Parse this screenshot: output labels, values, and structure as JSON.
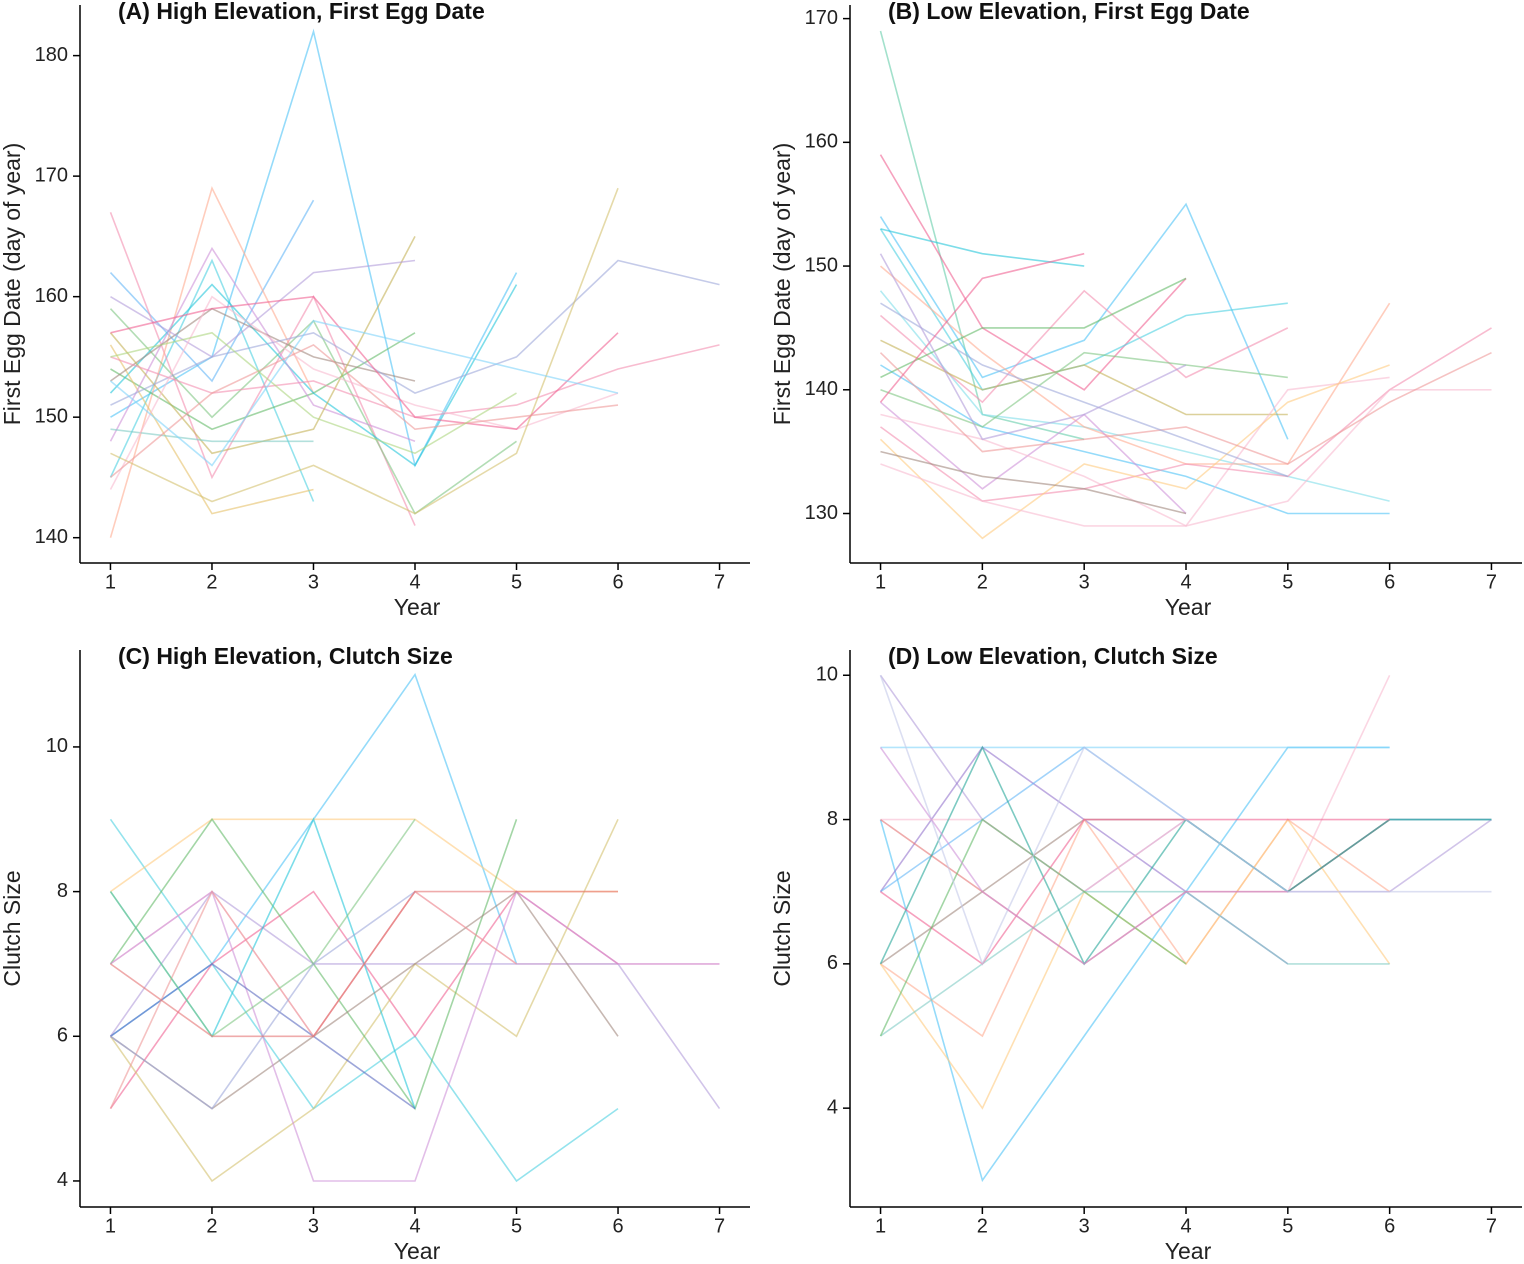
{
  "chart_data": [
    {
      "type": "line",
      "title": "(A) High Elevation, First Egg Date",
      "xlabel": "Year",
      "ylabel": "First Egg Date (day of year)",
      "x": [
        1,
        2,
        3,
        4,
        5,
        6,
        7
      ],
      "xlim": [
        0.7,
        7.3
      ],
      "xticks": [
        1,
        2,
        3,
        4,
        5,
        6,
        7
      ],
      "ylim": [
        137.9,
        184.2
      ],
      "yticks": [
        140,
        150,
        160,
        170,
        180
      ],
      "series": [
        {
          "color": "#4fc3f7",
          "values": [
            150,
            155,
            182,
            146,
            162,
            null,
            null
          ]
        },
        {
          "color": "#64b5f6",
          "values": [
            162,
            153,
            168,
            null,
            null,
            null,
            null
          ]
        },
        {
          "color": "#4dd0e1",
          "values": [
            145,
            163,
            143,
            null,
            null,
            null,
            null
          ]
        },
        {
          "color": "#f48fb1",
          "values": [
            167,
            145,
            160,
            141,
            null,
            null,
            null
          ]
        },
        {
          "color": "#ffab91",
          "values": [
            140,
            169,
            152,
            null,
            null,
            null,
            null
          ]
        },
        {
          "color": "#66bb6a",
          "values": [
            154,
            149,
            152,
            157,
            null,
            null,
            null
          ]
        },
        {
          "color": "#81c784",
          "values": [
            159,
            150,
            158,
            142,
            148,
            null,
            null
          ]
        },
        {
          "color": "#26c6da",
          "values": [
            152,
            161,
            152,
            146,
            161,
            null,
            null
          ]
        },
        {
          "color": "#e6c16a",
          "values": [
            156,
            142,
            144,
            null,
            null,
            null,
            null
          ]
        },
        {
          "color": "#ce93d8",
          "values": [
            148,
            164,
            151,
            148,
            null,
            null,
            null
          ]
        },
        {
          "color": "#a1887f",
          "values": [
            153,
            159,
            155,
            153,
            null,
            null,
            null
          ]
        },
        {
          "color": "#c5b358",
          "values": [
            157,
            147,
            149,
            165,
            null,
            null,
            null
          ]
        },
        {
          "color": "#b39ddb",
          "values": [
            160,
            155,
            162,
            163,
            null,
            null,
            null
          ]
        },
        {
          "color": "#9fa8da",
          "values": [
            151,
            155,
            157,
            152,
            155,
            163,
            161
          ]
        },
        {
          "color": "#80cbc4",
          "values": [
            149,
            148,
            148,
            null,
            null,
            null,
            null
          ]
        },
        {
          "color": "#f48fb1",
          "values": [
            155,
            152,
            153,
            150,
            151,
            154,
            156
          ]
        },
        {
          "color": "#f8bbd0",
          "values": [
            144,
            160,
            154,
            151,
            149,
            152,
            null
          ]
        },
        {
          "color": "#d4c270",
          "values": [
            147,
            143,
            146,
            142,
            147,
            169,
            null
          ]
        },
        {
          "color": "#f06292",
          "values": [
            157,
            159,
            160,
            150,
            149,
            157,
            null
          ]
        },
        {
          "color": "#ef9a9a",
          "values": [
            145,
            152,
            156,
            149,
            150,
            151,
            null
          ]
        },
        {
          "color": "#aed581",
          "values": [
            155,
            157,
            150,
            147,
            152,
            null,
            null
          ]
        },
        {
          "color": "#81d4fa",
          "values": [
            153,
            146,
            158,
            156,
            154,
            152,
            null
          ]
        }
      ]
    },
    {
      "type": "line",
      "title": "(B) Low Elevation, First Egg Date",
      "xlabel": "Year",
      "ylabel": "First Egg Date (day of year)",
      "x": [
        1,
        2,
        3,
        4,
        5,
        6,
        7
      ],
      "xlim": [
        0.7,
        7.3
      ],
      "xticks": [
        1,
        2,
        3,
        4,
        5,
        6,
        7
      ],
      "ylim": [
        126,
        171.1
      ],
      "yticks": [
        130,
        140,
        150,
        160,
        170
      ],
      "series": [
        {
          "color": "#66cdaa",
          "values": [
            169,
            138,
            136,
            null,
            null,
            null,
            null
          ]
        },
        {
          "color": "#f06292",
          "values": [
            159,
            145,
            140,
            149,
            null,
            null,
            null
          ]
        },
        {
          "color": "#4fc3f7",
          "values": [
            154,
            141,
            144,
            155,
            136,
            null,
            null
          ]
        },
        {
          "color": "#4dd0e1",
          "values": [
            153,
            140,
            142,
            146,
            147,
            null,
            null
          ]
        },
        {
          "color": "#26c6da",
          "values": [
            153,
            151,
            150,
            null,
            null,
            null,
            null
          ]
        },
        {
          "color": "#80deea",
          "values": [
            148,
            138,
            137,
            135,
            133,
            131,
            null
          ]
        },
        {
          "color": "#ffab91",
          "values": [
            150,
            143,
            137,
            134,
            134,
            147,
            null
          ]
        },
        {
          "color": "#f48fb1",
          "values": [
            146,
            139,
            148,
            141,
            145,
            null,
            null
          ]
        },
        {
          "color": "#c5b358",
          "values": [
            144,
            140,
            142,
            138,
            138,
            null,
            null
          ]
        },
        {
          "color": "#4fc3f7",
          "values": [
            142,
            137,
            135,
            133,
            130,
            130,
            null
          ]
        },
        {
          "color": "#66bb6a",
          "values": [
            141,
            145,
            145,
            149,
            null,
            null,
            null
          ]
        },
        {
          "color": "#ce93d8",
          "values": [
            139,
            132,
            138,
            130,
            null,
            null,
            null
          ]
        },
        {
          "color": "#f8bbd0",
          "values": [
            138,
            136,
            133,
            129,
            140,
            141,
            null
          ]
        },
        {
          "color": "#f48fb1",
          "values": [
            137,
            131,
            132,
            134,
            133,
            140,
            145
          ]
        },
        {
          "color": "#ffcc80",
          "values": [
            136,
            128,
            134,
            132,
            139,
            142,
            null
          ]
        },
        {
          "color": "#a1887f",
          "values": [
            135,
            133,
            132,
            130,
            null,
            null,
            null
          ]
        },
        {
          "color": "#f8bbd0",
          "values": [
            134,
            131,
            129,
            129,
            131,
            140,
            140
          ]
        },
        {
          "color": "#81c784",
          "values": [
            140,
            137,
            143,
            142,
            141,
            null,
            null
          ]
        },
        {
          "color": "#ef9a9a",
          "values": [
            143,
            135,
            136,
            137,
            134,
            139,
            143
          ]
        },
        {
          "color": "#9fa8da",
          "values": [
            147,
            142,
            139,
            136,
            133,
            null,
            null
          ]
        },
        {
          "color": "#f06292",
          "values": [
            139,
            149,
            151,
            null,
            null,
            null,
            null
          ]
        },
        {
          "color": "#b39ddb",
          "values": [
            151,
            136,
            138,
            142,
            null,
            null,
            null
          ]
        }
      ]
    },
    {
      "type": "line",
      "title": "(C) High Elevation, Clutch Size",
      "xlabel": "Year",
      "ylabel": "Clutch Size",
      "x": [
        1,
        2,
        3,
        4,
        5,
        6,
        7
      ],
      "xlim": [
        0.7,
        7.3
      ],
      "xticks": [
        1,
        2,
        3,
        4,
        5,
        6,
        7
      ],
      "ylim": [
        3.64,
        11.34
      ],
      "yticks": [
        4,
        6,
        8,
        10
      ],
      "series": [
        {
          "color": "#4fc3f7",
          "values": [
            6,
            7,
            9,
            11,
            7,
            null,
            null
          ]
        },
        {
          "color": "#4dd0e1",
          "values": [
            9,
            7,
            5,
            6,
            4,
            5,
            null
          ]
        },
        {
          "color": "#ffcc80",
          "values": [
            8,
            9,
            9,
            9,
            8,
            8,
            null
          ]
        },
        {
          "color": "#f8bbd0",
          "values": [
            7,
            8,
            6,
            8,
            7,
            7,
            7
          ]
        },
        {
          "color": "#b39ddb",
          "values": [
            6,
            8,
            7,
            7,
            7,
            7,
            5
          ]
        },
        {
          "color": "#f06292",
          "values": [
            5,
            7,
            8,
            6,
            8,
            7,
            null
          ]
        },
        {
          "color": "#d4c270",
          "values": [
            6,
            4,
            5,
            7,
            6,
            9,
            null
          ]
        },
        {
          "color": "#66bb6a",
          "values": [
            7,
            9,
            7,
            5,
            9,
            null,
            null
          ]
        },
        {
          "color": "#26c6da",
          "values": [
            8,
            6,
            9,
            5,
            null,
            null,
            null
          ]
        },
        {
          "color": "#a1887f",
          "values": [
            6,
            5,
            6,
            7,
            8,
            6,
            null
          ]
        },
        {
          "color": "#ce93d8",
          "values": [
            7,
            8,
            4,
            4,
            8,
            7,
            7
          ]
        },
        {
          "color": "#5c6bc0",
          "values": [
            6,
            7,
            6,
            5,
            null,
            null,
            null
          ]
        },
        {
          "color": "#ef9a9a",
          "values": [
            5,
            8,
            6,
            8,
            7,
            null,
            null
          ]
        },
        {
          "color": "#81c784",
          "values": [
            8,
            6,
            7,
            9,
            null,
            null,
            null
          ]
        },
        {
          "color": "#9fa8da",
          "values": [
            6,
            5,
            7,
            8,
            null,
            null,
            null
          ]
        },
        {
          "color": "#e57373",
          "values": [
            7,
            6,
            6,
            8,
            8,
            8,
            null
          ]
        }
      ]
    },
    {
      "type": "line",
      "title": "(D) Low Elevation, Clutch Size",
      "xlabel": "Year",
      "ylabel": "Clutch Size",
      "x": [
        1,
        2,
        3,
        4,
        5,
        6,
        7
      ],
      "xlim": [
        0.7,
        7.3
      ],
      "xticks": [
        1,
        2,
        3,
        4,
        5,
        6,
        7
      ],
      "ylim": [
        2.63,
        10.35
      ],
      "yticks": [
        4,
        6,
        8,
        10
      ],
      "series": [
        {
          "color": "#4fc3f7",
          "values": [
            8,
            3,
            5,
            7,
            9,
            9,
            null
          ]
        },
        {
          "color": "#81d4fa",
          "values": [
            9,
            9,
            9,
            9,
            9,
            9,
            null
          ]
        },
        {
          "color": "#b39ddb",
          "values": [
            10,
            8,
            7,
            8,
            7,
            7,
            8
          ]
        },
        {
          "color": "#a1887f",
          "values": [
            6,
            7,
            8,
            8,
            7,
            8,
            8
          ]
        },
        {
          "color": "#9575cd",
          "values": [
            7,
            9,
            8,
            7,
            6,
            null,
            null
          ]
        },
        {
          "color": "#ffab91",
          "values": [
            6,
            5,
            8,
            6,
            8,
            7,
            null
          ]
        },
        {
          "color": "#ffcc80",
          "values": [
            6,
            4,
            7,
            6,
            8,
            6,
            null
          ]
        },
        {
          "color": "#f8bbd0",
          "values": [
            8,
            8,
            7,
            8,
            7,
            10,
            null
          ]
        },
        {
          "color": "#64b5f6",
          "values": [
            7,
            8,
            9,
            8,
            7,
            8,
            8
          ]
        },
        {
          "color": "#80cbc4",
          "values": [
            5,
            6,
            7,
            7,
            6,
            6,
            null
          ]
        },
        {
          "color": "#e57373",
          "values": [
            8,
            7,
            6,
            7,
            7,
            8,
            null
          ]
        },
        {
          "color": "#26a69a",
          "values": [
            6,
            9,
            6,
            8,
            7,
            8,
            8
          ]
        },
        {
          "color": "#f06292",
          "values": [
            7,
            6,
            8,
            8,
            8,
            8,
            null
          ]
        },
        {
          "color": "#66bb6a",
          "values": [
            5,
            8,
            7,
            6,
            null,
            null,
            null
          ]
        },
        {
          "color": "#c5cae9",
          "values": [
            10,
            6,
            9,
            8,
            7,
            7,
            7
          ]
        },
        {
          "color": "#ce93d8",
          "values": [
            9,
            7,
            6,
            7,
            7,
            null,
            null
          ]
        }
      ]
    }
  ]
}
